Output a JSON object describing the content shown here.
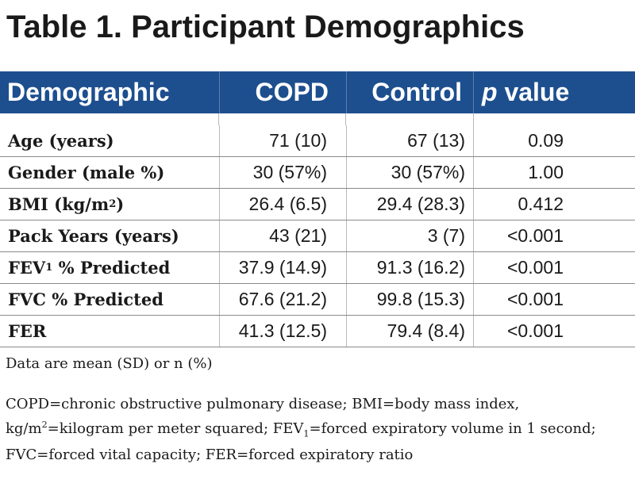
{
  "title": "Table 1. Participant Demographics",
  "headers": {
    "demographic": "Demographic",
    "copd": "COPD",
    "control": "Control",
    "p_italic": "p",
    "p_rest": " value"
  },
  "rows": [
    {
      "label": "Age (years)",
      "copd": "71 (10)",
      "control": "67 (13)",
      "p": "0.09"
    },
    {
      "label": "Gender (male %)",
      "copd": "30 (57%)",
      "control": "30 (57%)",
      "p": "1.00"
    },
    {
      "label_main": "BMI (kg/m",
      "label_sup": "2",
      "label_end": ")",
      "copd": "26.4 (6.5)",
      "control": "29.4 (28.3)",
      "p": "0.412"
    },
    {
      "label": "Pack Years (years)",
      "copd": "43 (21)",
      "control": "3 (7)",
      "p": "<0.001"
    },
    {
      "label_main": "FEV",
      "label_sub": "1",
      "label_end": " % Predicted",
      "copd": "37.9 (14.9)",
      "control": "91.3 (16.2)",
      "p": "<0.001"
    },
    {
      "label": "FVC % Predicted",
      "copd": "67.6 (21.2)",
      "control": "99.8 (15.3)",
      "p": "<0.001"
    },
    {
      "label": "FER",
      "copd": "41.3 (12.5)",
      "control": "79.4 (8.4)",
      "p": "<0.001"
    }
  ],
  "footnotes": {
    "data_note": "Data are mean (SD) or n (%)",
    "abbrev_part1": "COPD=chronic obstructive pulmonary disease; BMI=body mass index, kg/m",
    "abbrev_sup": "2",
    "abbrev_part2": "=kilogram per meter squared; FEV",
    "abbrev_sub": "1",
    "abbrev_part3": "=forced expiratory volume in 1 second; FVC=forced vital capacity; FER=forced expiratory ratio"
  },
  "colors": {
    "header_bg": "#1d4f8f",
    "header_text": "#ffffff",
    "text": "#1a1a1a"
  }
}
